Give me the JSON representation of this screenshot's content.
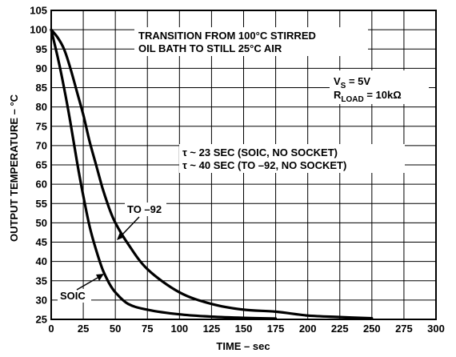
{
  "chart_data": {
    "type": "line",
    "xlabel": "TIME – sec",
    "ylabel": "OUTPUT TEMPERATURE – °C",
    "xlim": [
      0,
      300
    ],
    "ylim": [
      25,
      105
    ],
    "xticks": [
      0,
      25,
      50,
      75,
      100,
      125,
      150,
      175,
      200,
      225,
      250,
      275,
      300
    ],
    "yticks": [
      25,
      30,
      35,
      40,
      45,
      50,
      55,
      60,
      65,
      70,
      75,
      80,
      85,
      90,
      95,
      100,
      105
    ],
    "grid": true,
    "series": [
      {
        "name": "SOIC",
        "x": [
          0,
          5,
          10,
          15,
          20,
          25,
          30,
          35,
          40,
          45,
          50,
          60,
          75,
          100,
          125,
          150,
          175
        ],
        "y": [
          100,
          93,
          85,
          76,
          66,
          57,
          49,
          43,
          38,
          34.5,
          32,
          29,
          27.5,
          26.3,
          25.7,
          25.4,
          25.2
        ]
      },
      {
        "name": "TO –92",
        "x": [
          0,
          5,
          10,
          15,
          20,
          25,
          30,
          35,
          40,
          45,
          50,
          60,
          75,
          100,
          125,
          150,
          175,
          200,
          225,
          250
        ],
        "y": [
          100,
          98,
          95,
          90,
          84,
          78,
          71,
          65,
          59,
          54,
          50,
          44.5,
          38,
          32,
          29,
          27.5,
          27,
          26,
          25.6,
          25.3
        ]
      }
    ],
    "annotations": {
      "title_line1": "TRANSITION FROM 100°C STIRRED",
      "title_line2": "OIL BATH TO STILL 25°C AIR",
      "vs_main": "V",
      "vs_sub": "S",
      "vs_value": " = 5V",
      "rload_main": "R",
      "rload_sub": "LOAD",
      "rload_value": " = 10kΩ",
      "tau1": "τ ~ 23 SEC (SOIC, NO SOCKET)",
      "tau2": "τ ~ 40 SEC (TO –92, NO SOCKET)",
      "label_soic": "SOIC",
      "label_to92": "TO –92"
    }
  }
}
